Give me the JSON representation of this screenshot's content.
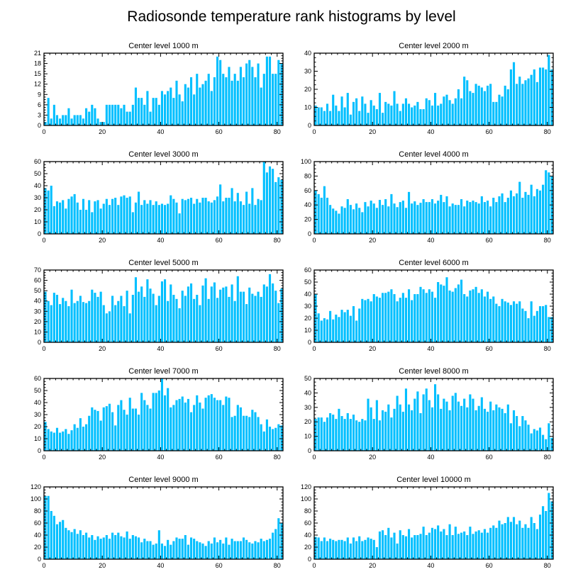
{
  "title": "Radiosonde temperature rank histograms by level",
  "colors": {
    "bar": "#00bfff",
    "axis": "#000000",
    "background": "#ffffff"
  },
  "chart_data": [
    {
      "type": "bar",
      "title": "Center level 1000 m",
      "x_range": [
        0,
        82
      ],
      "x_ticks": [
        0,
        20,
        40,
        60,
        80
      ],
      "ylim": [
        0,
        21
      ],
      "y_ticks": [
        0,
        3,
        6,
        9,
        12,
        15,
        18,
        21
      ],
      "values": [
        1,
        8,
        2,
        6,
        3,
        2,
        3,
        3,
        5,
        2,
        3,
        3,
        3,
        2,
        5,
        4,
        6,
        5,
        2,
        1,
        1,
        6,
        6,
        6,
        6,
        6,
        5,
        6,
        4,
        4,
        6,
        11,
        8,
        8,
        6,
        10,
        4,
        8,
        8,
        6,
        10,
        9,
        10,
        11,
        8,
        13,
        9,
        7,
        12,
        11,
        14,
        9,
        15,
        11,
        12,
        13,
        15,
        10,
        14,
        20,
        19,
        15,
        14,
        17,
        13,
        15,
        13,
        17,
        14,
        18,
        19,
        17,
        14,
        18,
        11,
        15,
        20,
        20,
        15,
        15,
        19,
        18
      ]
    },
    {
      "type": "bar",
      "title": "Center level 2000 m",
      "x_range": [
        0,
        82
      ],
      "x_ticks": [
        0,
        20,
        40,
        60,
        80
      ],
      "ylim": [
        0,
        40
      ],
      "y_ticks": [
        0,
        10,
        20,
        30,
        40
      ],
      "values": [
        11,
        10,
        10,
        8,
        12,
        8,
        17,
        11,
        8,
        16,
        10,
        18,
        6,
        13,
        15,
        8,
        16,
        12,
        7,
        14,
        11,
        9,
        18,
        7,
        13,
        12,
        11,
        19,
        12,
        8,
        12,
        15,
        12,
        10,
        11,
        13,
        9,
        9,
        15,
        14,
        11,
        18,
        11,
        12,
        16,
        17,
        14,
        12,
        15,
        20,
        15,
        27,
        25,
        19,
        18,
        23,
        22,
        21,
        19,
        22,
        23,
        13,
        13,
        17,
        16,
        22,
        20,
        31,
        35,
        23,
        27,
        23,
        25,
        26,
        28,
        31,
        24,
        32,
        32,
        31,
        39,
        31
      ]
    },
    {
      "type": "bar",
      "title": "Center level 3000 m",
      "x_range": [
        0,
        82
      ],
      "x_ticks": [
        0,
        20,
        40,
        60,
        80
      ],
      "ylim": [
        0,
        60
      ],
      "y_ticks": [
        0,
        10,
        20,
        30,
        40,
        50,
        60
      ],
      "values": [
        38,
        36,
        40,
        23,
        27,
        26,
        28,
        21,
        29,
        31,
        33,
        26,
        20,
        29,
        20,
        28,
        18,
        27,
        28,
        21,
        25,
        29,
        24,
        29,
        30,
        24,
        31,
        32,
        30,
        31,
        18,
        26,
        35,
        24,
        28,
        25,
        28,
        24,
        27,
        24,
        25,
        24,
        25,
        32,
        29,
        26,
        17,
        29,
        28,
        29,
        30,
        25,
        29,
        26,
        30,
        30,
        27,
        26,
        28,
        31,
        41,
        27,
        30,
        30,
        38,
        27,
        34,
        27,
        24,
        35,
        25,
        38,
        24,
        29,
        28,
        60,
        51,
        56,
        54,
        43,
        47,
        45
      ]
    },
    {
      "type": "bar",
      "title": "Center level 4000 m",
      "x_range": [
        0,
        82
      ],
      "x_ticks": [
        0,
        20,
        40,
        60,
        80
      ],
      "ylim": [
        0,
        100
      ],
      "y_ticks": [
        0,
        20,
        40,
        60,
        80,
        100
      ],
      "values": [
        60,
        55,
        50,
        66,
        50,
        40,
        35,
        32,
        28,
        38,
        36,
        48,
        40,
        34,
        42,
        36,
        30,
        44,
        38,
        46,
        42,
        36,
        47,
        40,
        48,
        38,
        55,
        42,
        37,
        44,
        46,
        36,
        58,
        42,
        45,
        40,
        43,
        48,
        44,
        44,
        48,
        42,
        46,
        54,
        44,
        52,
        38,
        42,
        40,
        40,
        48,
        38,
        46,
        44,
        46,
        44,
        42,
        52,
        44,
        46,
        38,
        50,
        44,
        52,
        56,
        44,
        50,
        60,
        52,
        56,
        72,
        50,
        58,
        54,
        68,
        52,
        62,
        60,
        68,
        88,
        85,
        80
      ]
    },
    {
      "type": "bar",
      "title": "Center level 5000 m",
      "x_range": [
        0,
        82
      ],
      "x_ticks": [
        0,
        20,
        40,
        60,
        80
      ],
      "ylim": [
        0,
        70
      ],
      "y_ticks": [
        0,
        10,
        20,
        30,
        40,
        50,
        60,
        70
      ],
      "values": [
        49,
        40,
        36,
        48,
        46,
        37,
        43,
        40,
        35,
        51,
        38,
        40,
        45,
        39,
        38,
        40,
        51,
        48,
        44,
        49,
        36,
        28,
        30,
        45,
        36,
        40,
        45,
        35,
        50,
        28,
        46,
        63,
        49,
        54,
        44,
        61,
        52,
        47,
        36,
        45,
        59,
        61,
        40,
        56,
        46,
        42,
        33,
        50,
        45,
        54,
        57,
        42,
        46,
        36,
        55,
        62,
        42,
        54,
        58,
        43,
        51,
        53,
        54,
        44,
        56,
        40,
        64,
        49,
        49,
        37,
        53,
        47,
        45,
        49,
        44,
        56,
        54,
        66,
        57,
        50,
        38,
        52
      ]
    },
    {
      "type": "bar",
      "title": "Center level 6000 m",
      "x_range": [
        0,
        82
      ],
      "x_ticks": [
        0,
        20,
        40,
        60,
        80
      ],
      "ylim": [
        0,
        60
      ],
      "y_ticks": [
        0,
        10,
        20,
        30,
        40,
        50,
        60
      ],
      "values": [
        40,
        24,
        18,
        20,
        19,
        26,
        19,
        23,
        21,
        27,
        25,
        27,
        22,
        30,
        18,
        28,
        36,
        35,
        36,
        34,
        40,
        38,
        37,
        41,
        41,
        42,
        44,
        40,
        34,
        37,
        41,
        37,
        44,
        35,
        40,
        40,
        46,
        44,
        41,
        44,
        42,
        37,
        50,
        48,
        47,
        54,
        43,
        42,
        45,
        48,
        52,
        40,
        38,
        43,
        44,
        46,
        41,
        44,
        38,
        42,
        36,
        38,
        32,
        30,
        36,
        34,
        33,
        31,
        34,
        32,
        34,
        28,
        26,
        20,
        34,
        22,
        26,
        30,
        30,
        31,
        21,
        21
      ]
    },
    {
      "type": "bar",
      "title": "Center level 7000 m",
      "x_range": [
        0,
        82
      ],
      "x_ticks": [
        0,
        20,
        40,
        60,
        80
      ],
      "ylim": [
        0,
        60
      ],
      "y_ticks": [
        0,
        10,
        20,
        30,
        40,
        50,
        60
      ],
      "values": [
        24,
        18,
        16,
        15,
        19,
        15,
        16,
        18,
        14,
        17,
        22,
        19,
        27,
        20,
        22,
        29,
        36,
        34,
        33,
        25,
        36,
        37,
        39,
        32,
        21,
        38,
        42,
        34,
        30,
        44,
        35,
        35,
        30,
        48,
        42,
        38,
        35,
        48,
        48,
        50,
        60,
        46,
        52,
        36,
        38,
        42,
        43,
        45,
        40,
        43,
        32,
        38,
        46,
        40,
        35,
        44,
        46,
        47,
        44,
        42,
        42,
        38,
        45,
        44,
        28,
        29,
        38,
        36,
        29,
        29,
        28,
        34,
        32,
        28,
        22,
        16,
        26,
        20,
        18,
        19,
        22,
        21
      ]
    },
    {
      "type": "bar",
      "title": "Center level 8000 m",
      "x_range": [
        0,
        82
      ],
      "x_ticks": [
        0,
        20,
        40,
        60,
        80
      ],
      "ylim": [
        0,
        50
      ],
      "y_ticks": [
        0,
        10,
        20,
        30,
        40,
        50
      ],
      "values": [
        22,
        23,
        23,
        20,
        23,
        26,
        25,
        22,
        29,
        24,
        22,
        26,
        22,
        25,
        21,
        20,
        22,
        21,
        36,
        30,
        22,
        35,
        21,
        28,
        27,
        32,
        23,
        29,
        38,
        32,
        27,
        43,
        32,
        28,
        36,
        41,
        26,
        39,
        43,
        35,
        30,
        46,
        39,
        29,
        36,
        34,
        28,
        38,
        40,
        34,
        31,
        36,
        30,
        39,
        36,
        28,
        31,
        37,
        29,
        27,
        34,
        28,
        32,
        30,
        29,
        26,
        32,
        19,
        28,
        24,
        17,
        24,
        21,
        18,
        12,
        15,
        14,
        16,
        11,
        8,
        19,
        9
      ]
    },
    {
      "type": "bar",
      "title": "Center level 9000 m",
      "x_range": [
        0,
        82
      ],
      "x_ticks": [
        0,
        20,
        40,
        60,
        80
      ],
      "ylim": [
        0,
        120
      ],
      "y_ticks": [
        0,
        20,
        40,
        60,
        80,
        100,
        120
      ],
      "values": [
        105,
        105,
        80,
        72,
        58,
        62,
        65,
        52,
        48,
        45,
        50,
        42,
        48,
        40,
        44,
        36,
        40,
        32,
        38,
        34,
        36,
        40,
        34,
        44,
        40,
        44,
        38,
        36,
        46,
        34,
        40,
        38,
        36,
        28,
        34,
        30,
        30,
        24,
        26,
        48,
        26,
        22,
        32,
        24,
        30,
        36,
        34,
        34,
        40,
        24,
        36,
        34,
        30,
        28,
        26,
        22,
        30,
        26,
        36,
        28,
        32,
        26,
        36,
        24,
        34,
        30,
        30,
        30,
        36,
        32,
        28,
        26,
        30,
        28,
        34,
        30,
        32,
        34,
        44,
        50,
        68,
        60
      ]
    },
    {
      "type": "bar",
      "title": "Center level 10000 m",
      "x_range": [
        0,
        82
      ],
      "x_ticks": [
        0,
        20,
        40,
        60,
        80
      ],
      "ylim": [
        0,
        120
      ],
      "y_ticks": [
        0,
        20,
        40,
        60,
        80,
        100,
        120
      ],
      "values": [
        37,
        36,
        30,
        36,
        30,
        34,
        32,
        30,
        32,
        32,
        30,
        36,
        26,
        36,
        30,
        38,
        30,
        32,
        36,
        34,
        32,
        20,
        46,
        48,
        40,
        52,
        36,
        44,
        26,
        48,
        40,
        38,
        50,
        36,
        40,
        40,
        42,
        54,
        40,
        44,
        52,
        50,
        56,
        46,
        50,
        40,
        58,
        40,
        54,
        42,
        44,
        46,
        40,
        54,
        42,
        46,
        48,
        44,
        50,
        44,
        52,
        56,
        52,
        64,
        58,
        60,
        70,
        62,
        70,
        58,
        64,
        52,
        58,
        52,
        70,
        60,
        50,
        74,
        88,
        80,
        110,
        96
      ]
    }
  ]
}
